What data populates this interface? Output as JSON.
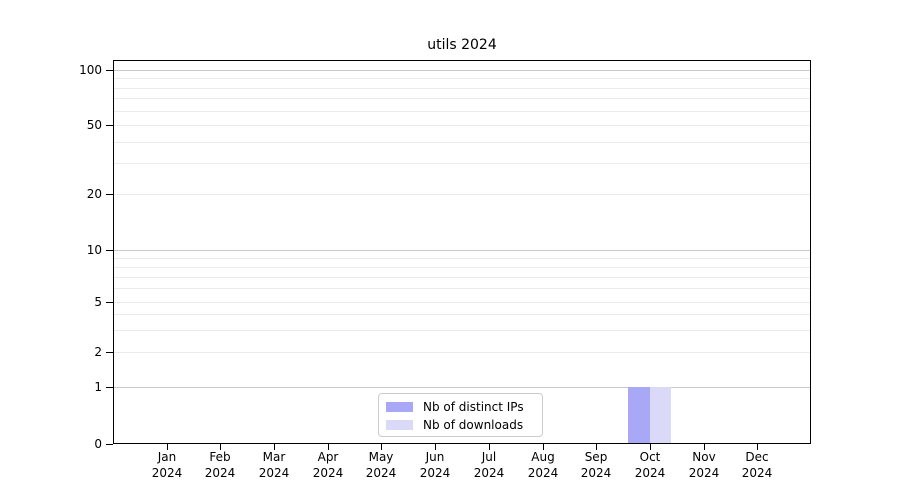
{
  "title": "utils 2024",
  "chart_data": {
    "type": "bar",
    "title": "utils 2024",
    "categories": [
      "Jan 2024",
      "Feb 2024",
      "Mar 2024",
      "Apr 2024",
      "May 2024",
      "Jun 2024",
      "Jul 2024",
      "Aug 2024",
      "Sep 2024",
      "Oct 2024",
      "Nov 2024",
      "Dec 2024"
    ],
    "series": [
      {
        "name": "Nb of distinct IPs",
        "color": "#a8a8f6",
        "values": [
          0,
          0,
          0,
          0,
          0,
          0,
          0,
          0,
          0,
          1,
          0,
          0
        ]
      },
      {
        "name": "Nb of downloads",
        "color": "#dadaf8",
        "values": [
          0,
          0,
          0,
          0,
          0,
          0,
          0,
          0,
          0,
          1,
          0,
          0
        ]
      }
    ],
    "xlabel": "",
    "ylabel": "",
    "yscale": "symlog",
    "ylim": [
      0,
      110
    ],
    "yticks": [
      0,
      1,
      2,
      5,
      10,
      20,
      50,
      100
    ],
    "major_gridline_values": [
      1,
      10,
      100
    ],
    "minor_gridline_values": [
      3,
      4,
      6,
      7,
      8,
      9,
      30,
      40,
      60,
      70,
      80,
      90
    ],
    "grid": "horizontal",
    "legend_position": "bottom-center-inside",
    "legend_entries": [
      "Nb of distinct IPs",
      "Nb of downloads"
    ]
  },
  "colors": {
    "background": "#ffffff",
    "bar_distinct_ips": "#a8a8f6",
    "bar_downloads": "#dadaf8",
    "grid_major": "#c8c8c8",
    "grid_minor": "#ebebeb",
    "axis": "#000000",
    "legend_border": "#cccccc",
    "text": "#000000"
  }
}
